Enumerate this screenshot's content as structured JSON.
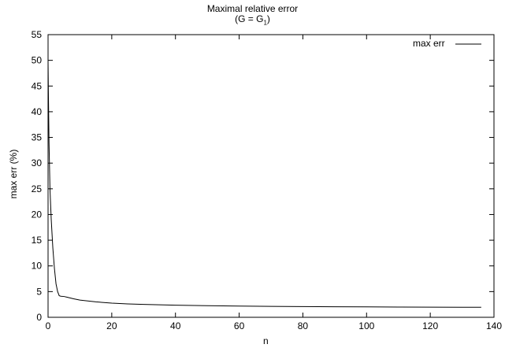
{
  "chart_data": {
    "type": "line",
    "title": "Maximal relative error",
    "subtitle": {
      "prefix": "(G = G",
      "subscript": "1",
      "suffix": ")"
    },
    "xlabel": "n",
    "ylabel": "max err (%)",
    "xlim": [
      0,
      140
    ],
    "ylim": [
      0,
      55
    ],
    "xticks": [
      0,
      20,
      40,
      60,
      80,
      100,
      120,
      140
    ],
    "yticks": [
      0,
      5,
      10,
      15,
      20,
      25,
      30,
      35,
      40,
      45,
      50,
      55
    ],
    "grid": false,
    "legend_position": "top-right",
    "series": [
      {
        "name": "max err",
        "color": "#000000",
        "x": [
          0,
          0.1,
          0.3,
          0.6,
          1,
          1.5,
          2,
          2.5,
          3,
          3.5,
          4,
          5,
          6,
          8,
          10,
          15,
          20,
          25,
          30,
          40,
          50,
          60,
          70,
          80,
          90,
          100,
          110,
          120,
          130,
          136
        ],
        "y": [
          50,
          44,
          34,
          25,
          19,
          13.5,
          9.5,
          6.5,
          5,
          4.2,
          4.1,
          4.05,
          3.9,
          3.6,
          3.35,
          3.0,
          2.75,
          2.6,
          2.5,
          2.35,
          2.25,
          2.18,
          2.12,
          2.08,
          2.05,
          2.02,
          2.0,
          1.98,
          1.96,
          1.95
        ]
      }
    ]
  }
}
